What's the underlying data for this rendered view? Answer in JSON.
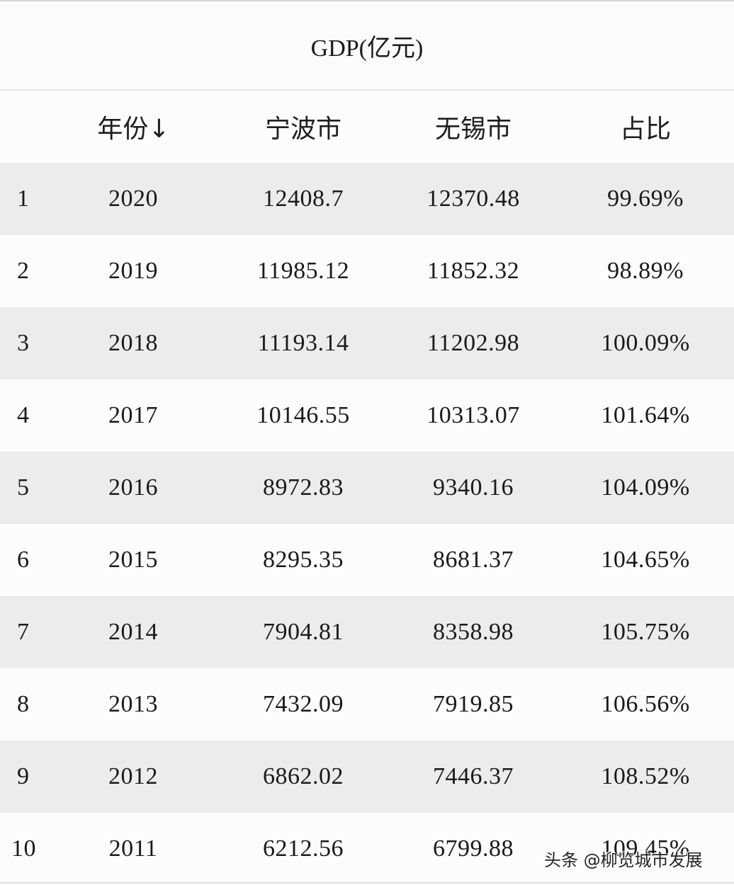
{
  "title": "GDP(亿元)",
  "columns": [
    "",
    "年份↓",
    "宁波市",
    "无锡市",
    "占比"
  ],
  "rows": [
    {
      "index": "1",
      "year": "2020",
      "ningbo": "12408.7",
      "wuxi": "12370.48",
      "ratio": "99.69%"
    },
    {
      "index": "2",
      "year": "2019",
      "ningbo": "11985.12",
      "wuxi": "11852.32",
      "ratio": "98.89%"
    },
    {
      "index": "3",
      "year": "2018",
      "ningbo": "11193.14",
      "wuxi": "11202.98",
      "ratio": "100.09%"
    },
    {
      "index": "4",
      "year": "2017",
      "ningbo": "10146.55",
      "wuxi": "10313.07",
      "ratio": "101.64%"
    },
    {
      "index": "5",
      "year": "2016",
      "ningbo": "8972.83",
      "wuxi": "9340.16",
      "ratio": "104.09%"
    },
    {
      "index": "6",
      "year": "2015",
      "ningbo": "8295.35",
      "wuxi": "8681.37",
      "ratio": "104.65%"
    },
    {
      "index": "7",
      "year": "2014",
      "ningbo": "7904.81",
      "wuxi": "8358.98",
      "ratio": "105.75%"
    },
    {
      "index": "8",
      "year": "2013",
      "ningbo": "7432.09",
      "wuxi": "7919.85",
      "ratio": "106.56%"
    },
    {
      "index": "9",
      "year": "2012",
      "ningbo": "6862.02",
      "wuxi": "7446.37",
      "ratio": "108.52%"
    },
    {
      "index": "10",
      "year": "2011",
      "ningbo": "6212.56",
      "wuxi": "6799.88",
      "ratio": "109.45%"
    }
  ],
  "watermark": "头条 @柳览城市发展",
  "colors": {
    "row_odd": "#ececec",
    "row_even": "#fcfcfc",
    "text": "#1a1a1a"
  }
}
